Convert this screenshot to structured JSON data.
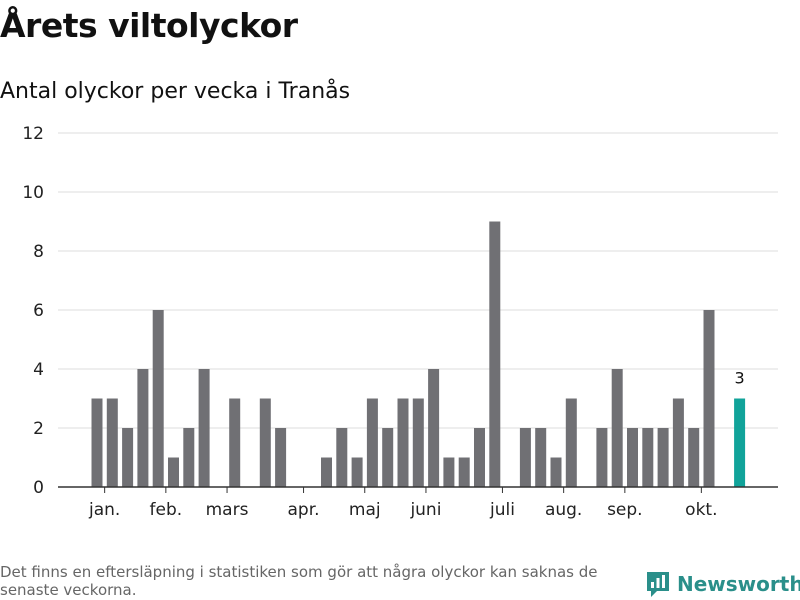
{
  "title": "Årets viltolyckor",
  "subtitle": "Antal olyckor per vecka i Tranås",
  "footnote": "Det finns en eftersläpning i statistiken som gör att några olyckor kan saknas de senaste veckorna.",
  "brand": "Newsworthy",
  "colors": {
    "bar": "#707074",
    "highlight": "#11a39a",
    "grid": "#dddddd",
    "axis": "#333333",
    "brand": "#2a8f8a"
  },
  "chart_data": {
    "type": "bar",
    "x_unit": "week",
    "x": [
      1,
      2,
      3,
      4,
      5,
      6,
      7,
      8,
      9,
      10,
      11,
      12,
      13,
      14,
      15,
      16,
      17,
      18,
      19,
      20,
      21,
      22,
      23,
      24,
      25,
      26,
      27,
      28,
      29,
      30,
      31,
      32,
      33,
      34,
      35,
      36,
      37,
      38,
      39,
      40,
      41,
      42,
      43
    ],
    "values": [
      3,
      3,
      2,
      4,
      6,
      1,
      2,
      4,
      0,
      3,
      0,
      3,
      2,
      0,
      0,
      1,
      2,
      1,
      3,
      2,
      3,
      3,
      4,
      1,
      1,
      2,
      9,
      0,
      2,
      2,
      1,
      3,
      0,
      2,
      4,
      2,
      2,
      2,
      3,
      2,
      6,
      0,
      3
    ],
    "highlight_index": 42,
    "highlight_label": "3",
    "ylim": [
      0,
      12
    ],
    "yticks": [
      0,
      2,
      4,
      6,
      8,
      10,
      12
    ],
    "month_ticks": [
      {
        "label": "jan.",
        "week": 1.5
      },
      {
        "label": "feb.",
        "week": 5.5
      },
      {
        "label": "mars",
        "week": 9.5
      },
      {
        "label": "apr.",
        "week": 14.5
      },
      {
        "label": "maj",
        "week": 18.5
      },
      {
        "label": "juni",
        "week": 22.5
      },
      {
        "label": "juli",
        "week": 27.5
      },
      {
        "label": "aug.",
        "week": 31.5
      },
      {
        "label": "sep.",
        "week": 35.5
      },
      {
        "label": "okt.",
        "week": 40.5
      }
    ],
    "grid": true,
    "legend": "none"
  }
}
